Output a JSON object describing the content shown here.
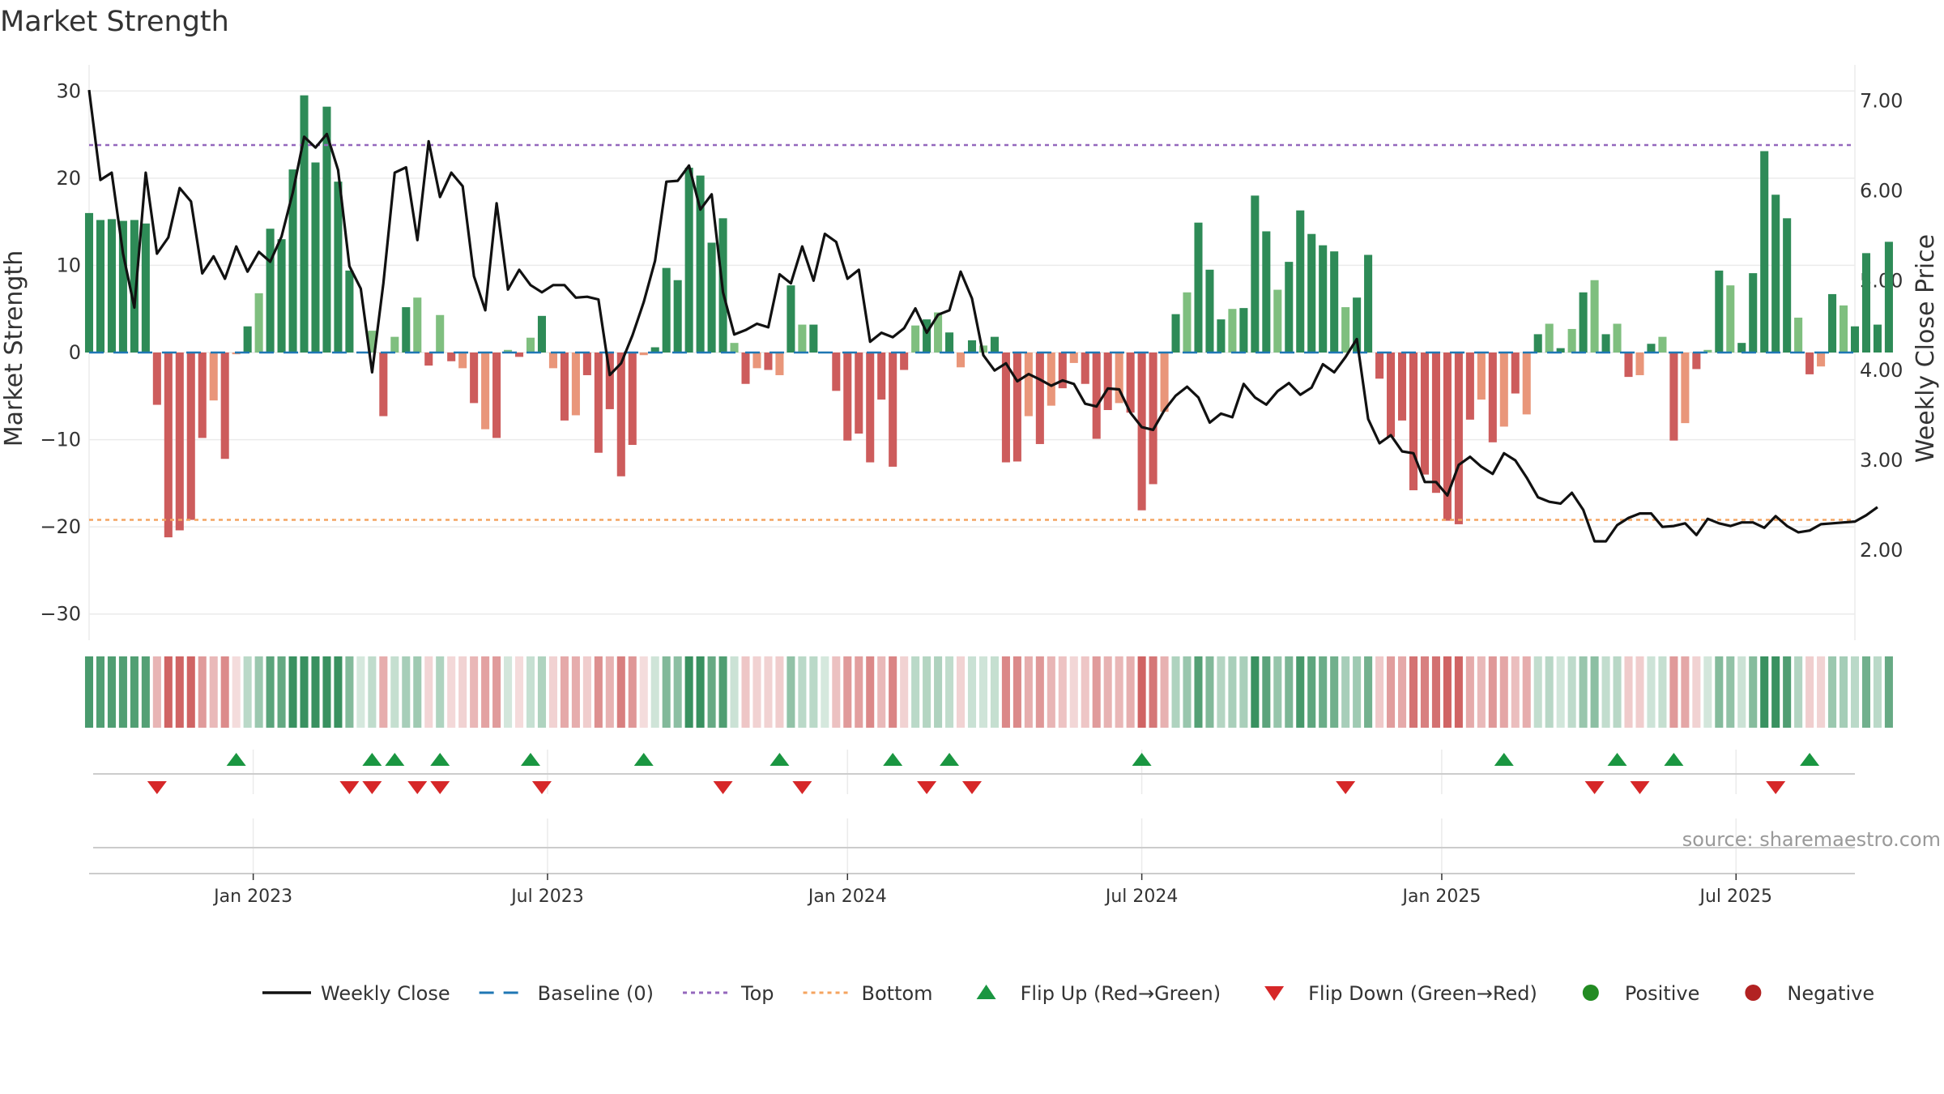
{
  "chart_data": {
    "type": "bar",
    "title": "Market Strength",
    "ylabel": "Market Strength",
    "y2label": "Weekly Close Price",
    "ylim": [
      -33,
      33
    ],
    "y2lim": [
      1.0,
      7.4
    ],
    "yticks": [
      {
        "value": 30,
        "label": "30"
      },
      {
        "value": 20,
        "label": "20"
      },
      {
        "value": 10,
        "label": "10"
      },
      {
        "value": 0,
        "label": "0"
      },
      {
        "value": -10,
        "label": "−10"
      },
      {
        "value": -20,
        "label": "−20"
      },
      {
        "value": -30,
        "label": "−30"
      }
    ],
    "y2ticks": [
      {
        "value": 7,
        "label": "7.00"
      },
      {
        "value": 6,
        "label": "6.00"
      },
      {
        "value": 5,
        "label": "5.00"
      },
      {
        "value": 4,
        "label": "4.00"
      },
      {
        "value": 3,
        "label": "3.00"
      },
      {
        "value": 2,
        "label": "2.00"
      }
    ],
    "xticks": [
      {
        "week": 14.5,
        "label": "Jan 2023"
      },
      {
        "week": 40.5,
        "label": "Jul 2023"
      },
      {
        "week": 67,
        "label": "Jan 2024"
      },
      {
        "week": 93,
        "label": "Jul 2024"
      },
      {
        "week": 119.5,
        "label": "Jan 2025"
      },
      {
        "week": 145.5,
        "label": "Jul 2025"
      }
    ],
    "weeks": 157,
    "top_threshold": 23.8,
    "bottom_threshold": -19.2,
    "strength": [
      16,
      15.2,
      15.3,
      15.1,
      15.2,
      14.8,
      -6,
      -21.2,
      -20.4,
      -19.2,
      -9.8,
      -5.5,
      -12.2,
      -0.2,
      3,
      6.8,
      14.2,
      13,
      21,
      29.5,
      21.8,
      28.2,
      19.6,
      9.4,
      0.1,
      2.5,
      -7.3,
      1.8,
      5.2,
      6.3,
      -1.5,
      4.3,
      -1,
      -1.8,
      -5.8,
      -8.8,
      -9.8,
      0.3,
      -0.5,
      1.7,
      4.2,
      -1.8,
      -7.8,
      -7.2,
      -2.6,
      -11.5,
      -6.5,
      -14.2,
      -10.6,
      -0.3,
      0.6,
      9.7,
      8.3,
      21.2,
      20.3,
      12.6,
      15.4,
      1.1,
      -3.6,
      -1.8,
      -2,
      -2.6,
      7.7,
      3.2,
      3.2,
      0.1,
      -4.4,
      -10.1,
      -9.3,
      -12.6,
      -5.4,
      -13.1,
      -2,
      3.1,
      3.8,
      4.6,
      2.3,
      -1.7,
      1.4,
      0.8,
      1.8,
      -12.6,
      -12.5,
      -7.3,
      -10.5,
      -6.1,
      -4.1,
      -1.2,
      -3.6,
      -9.9,
      -6.6,
      -5.8,
      -6.9,
      -18.1,
      -15.1,
      -6.8,
      4.4,
      6.9,
      14.9,
      9.5,
      3.8,
      5,
      5.1,
      18,
      13.9,
      7.2,
      10.4,
      16.3,
      13.6,
      12.3,
      11.6,
      5.2,
      6.3,
      11.2,
      -3,
      -9.7,
      -7.8,
      -15.8,
      -14,
      -16.1,
      -19.3,
      -19.7,
      -7.7,
      -5.4,
      -10.3,
      -8.5,
      -4.7,
      -7.1,
      2.1,
      3.3,
      0.5,
      2.7,
      6.9,
      8.3,
      2.1,
      3.3,
      -2.8,
      -2.6,
      1,
      1.8,
      -10.1,
      -8.1,
      -1.9,
      0.3,
      9.4,
      7.7,
      1.1,
      9.1,
      23.1,
      18.1,
      15.4,
      4,
      -2.5,
      -1.6,
      6.7,
      5.4,
      3,
      11.4,
      3.2,
      12.7
    ],
    "close": [
      7.12,
      6.12,
      6.2,
      5.3,
      4.7,
      6.2,
      5.3,
      5.48,
      6.03,
      5.88,
      5.08,
      5.27,
      5.02,
      5.38,
      5.1,
      5.32,
      5.21,
      5.49,
      5.98,
      6.6,
      6.48,
      6.63,
      6.23,
      5.16,
      4.91,
      3.98,
      4.97,
      6.2,
      6.26,
      5.45,
      6.55,
      5.93,
      6.2,
      6.05,
      5.05,
      4.67,
      5.86,
      4.9,
      5.12,
      4.95,
      4.87,
      4.95,
      4.95,
      4.81,
      4.82,
      4.79,
      3.95,
      4.08,
      4.39,
      4.76,
      5.22,
      6.1,
      6.11,
      6.28,
      5.79,
      5.96,
      4.87,
      4.4,
      4.45,
      4.52,
      4.48,
      5.07,
      4.97,
      5.38,
      5.0,
      5.52,
      5.43,
      5.02,
      5.12,
      4.32,
      4.42,
      4.37,
      4.47,
      4.69,
      4.42,
      4.62,
      4.67,
      5.1,
      4.8,
      4.17,
      4.0,
      4.08,
      3.88,
      3.96,
      3.9,
      3.83,
      3.89,
      3.85,
      3.63,
      3.6,
      3.8,
      3.79,
      3.53,
      3.37,
      3.34,
      3.56,
      3.72,
      3.82,
      3.7,
      3.42,
      3.52,
      3.48,
      3.85,
      3.7,
      3.62,
      3.77,
      3.86,
      3.73,
      3.81,
      4.07,
      3.98,
      4.15,
      4.35,
      3.46,
      3.19,
      3.28,
      3.1,
      3.08,
      2.76,
      2.76,
      2.61,
      2.95,
      3.04,
      2.93,
      2.85,
      3.08,
      3.0,
      2.81,
      2.59,
      2.54,
      2.52,
      2.64,
      2.45,
      2.1,
      2.1,
      2.28,
      2.36,
      2.41,
      2.41,
      2.26,
      2.27,
      2.3,
      2.17,
      2.35,
      2.3,
      2.27,
      2.31,
      2.31,
      2.25,
      2.38,
      2.27,
      2.2,
      2.22,
      2.29,
      2.3,
      2.31,
      2.32,
      2.39,
      2.48
    ],
    "flip_up_weeks": [
      13,
      25,
      27,
      31,
      39,
      49,
      61,
      71,
      76,
      93,
      125,
      135,
      140,
      152
    ],
    "flip_down_weeks": [
      6,
      23,
      25,
      29,
      31,
      40,
      56,
      63,
      74,
      78,
      111,
      133,
      137,
      149
    ],
    "legend": [
      {
        "key": "close",
        "label": "Weekly Close"
      },
      {
        "key": "baseline",
        "label": "Baseline (0)"
      },
      {
        "key": "top",
        "label": "Top"
      },
      {
        "key": "bottom",
        "label": "Bottom"
      },
      {
        "key": "flip_up",
        "label": "Flip Up (Red→Green)"
      },
      {
        "key": "flip_down",
        "label": "Flip Down (Green→Red)"
      },
      {
        "key": "positive",
        "label": "Positive"
      },
      {
        "key": "negative",
        "label": "Negative"
      }
    ],
    "source": "source: sharemaestro.com",
    "colors": {
      "green_dark": "#2e8b57",
      "green_light": "#7fbf7f",
      "red_dark": "#cd5c5c",
      "red_light": "#e9967a",
      "line": "#111111",
      "baseline": "#1f77b4",
      "top": "#9467bd",
      "bottom": "#f4a460",
      "flip_up": "#1a9641",
      "flip_down": "#d62728",
      "positive": "#228b22",
      "negative": "#b22222",
      "grid": "#ebebeb"
    }
  }
}
